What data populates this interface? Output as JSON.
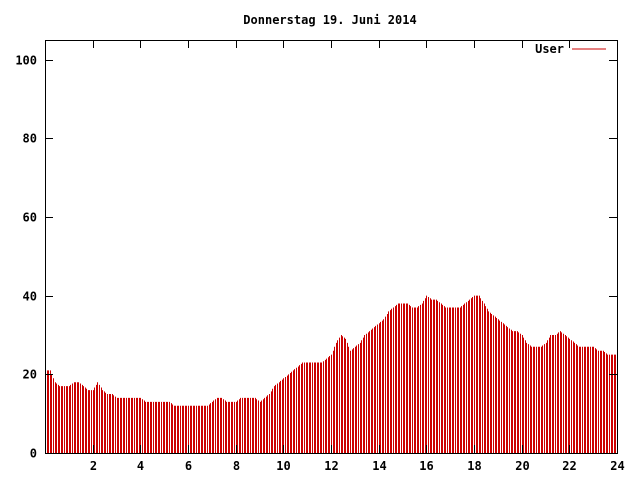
{
  "chart_data": {
    "type": "bar",
    "title": "Donnerstag 19. Juni 2014",
    "xlabel": "",
    "ylabel": "",
    "xlim": [
      0,
      24
    ],
    "ylim": [
      0,
      105
    ],
    "x_ticks": [
      2,
      4,
      6,
      8,
      10,
      12,
      14,
      16,
      18,
      20,
      22,
      24
    ],
    "y_ticks": [
      0,
      20,
      40,
      60,
      80,
      100
    ],
    "grid": false,
    "legend_position": "top-right",
    "series": [
      {
        "name": "User",
        "color": "#cc0000",
        "points": [
          [
            0.0,
            21
          ],
          [
            0.2,
            21
          ],
          [
            0.4,
            18
          ],
          [
            0.6,
            17
          ],
          [
            0.8,
            17
          ],
          [
            1.0,
            17
          ],
          [
            1.2,
            18
          ],
          [
            1.4,
            18
          ],
          [
            1.6,
            17
          ],
          [
            1.8,
            16
          ],
          [
            2.0,
            16
          ],
          [
            2.2,
            18
          ],
          [
            2.4,
            16
          ],
          [
            2.6,
            15
          ],
          [
            2.8,
            15
          ],
          [
            3.0,
            14
          ],
          [
            3.2,
            14
          ],
          [
            3.4,
            14
          ],
          [
            3.6,
            14
          ],
          [
            3.8,
            14
          ],
          [
            4.0,
            14
          ],
          [
            4.2,
            13
          ],
          [
            4.4,
            13
          ],
          [
            4.6,
            13
          ],
          [
            4.8,
            13
          ],
          [
            5.0,
            13
          ],
          [
            5.2,
            13
          ],
          [
            5.4,
            12
          ],
          [
            5.6,
            12
          ],
          [
            5.8,
            12
          ],
          [
            6.0,
            12
          ],
          [
            6.2,
            12
          ],
          [
            6.4,
            12
          ],
          [
            6.6,
            12
          ],
          [
            6.8,
            12
          ],
          [
            7.0,
            13
          ],
          [
            7.2,
            14
          ],
          [
            7.4,
            14
          ],
          [
            7.6,
            13
          ],
          [
            7.8,
            13
          ],
          [
            8.0,
            13
          ],
          [
            8.2,
            14
          ],
          [
            8.4,
            14
          ],
          [
            8.6,
            14
          ],
          [
            8.8,
            14
          ],
          [
            9.0,
            13
          ],
          [
            9.2,
            14
          ],
          [
            9.4,
            15
          ],
          [
            9.6,
            17
          ],
          [
            9.8,
            18
          ],
          [
            10.0,
            19
          ],
          [
            10.2,
            20
          ],
          [
            10.4,
            21
          ],
          [
            10.6,
            22
          ],
          [
            10.8,
            23
          ],
          [
            11.0,
            23
          ],
          [
            11.2,
            23
          ],
          [
            11.4,
            23
          ],
          [
            11.6,
            23
          ],
          [
            11.8,
            24
          ],
          [
            12.0,
            25
          ],
          [
            12.2,
            28
          ],
          [
            12.4,
            30
          ],
          [
            12.6,
            29
          ],
          [
            12.8,
            26
          ],
          [
            13.0,
            27
          ],
          [
            13.2,
            28
          ],
          [
            13.4,
            30
          ],
          [
            13.6,
            31
          ],
          [
            13.8,
            32
          ],
          [
            14.0,
            33
          ],
          [
            14.2,
            34
          ],
          [
            14.4,
            36
          ],
          [
            14.6,
            37
          ],
          [
            14.8,
            38
          ],
          [
            15.0,
            38
          ],
          [
            15.2,
            38
          ],
          [
            15.4,
            37
          ],
          [
            15.6,
            37
          ],
          [
            15.8,
            38
          ],
          [
            16.0,
            40
          ],
          [
            16.2,
            39
          ],
          [
            16.4,
            39
          ],
          [
            16.6,
            38
          ],
          [
            16.8,
            37
          ],
          [
            17.0,
            37
          ],
          [
            17.2,
            37
          ],
          [
            17.4,
            37
          ],
          [
            17.6,
            38
          ],
          [
            17.8,
            39
          ],
          [
            18.0,
            40
          ],
          [
            18.2,
            40
          ],
          [
            18.4,
            38
          ],
          [
            18.6,
            36
          ],
          [
            18.8,
            35
          ],
          [
            19.0,
            34
          ],
          [
            19.2,
            33
          ],
          [
            19.4,
            32
          ],
          [
            19.6,
            31
          ],
          [
            19.8,
            31
          ],
          [
            20.0,
            30
          ],
          [
            20.2,
            28
          ],
          [
            20.4,
            27
          ],
          [
            20.6,
            27
          ],
          [
            20.8,
            27
          ],
          [
            21.0,
            28
          ],
          [
            21.2,
            30
          ],
          [
            21.4,
            30
          ],
          [
            21.6,
            31
          ],
          [
            21.8,
            30
          ],
          [
            22.0,
            29
          ],
          [
            22.2,
            28
          ],
          [
            22.4,
            27
          ],
          [
            22.6,
            27
          ],
          [
            22.8,
            27
          ],
          [
            23.0,
            27
          ],
          [
            23.2,
            26
          ],
          [
            23.4,
            26
          ],
          [
            23.6,
            25
          ],
          [
            23.8,
            25
          ]
        ]
      }
    ]
  }
}
